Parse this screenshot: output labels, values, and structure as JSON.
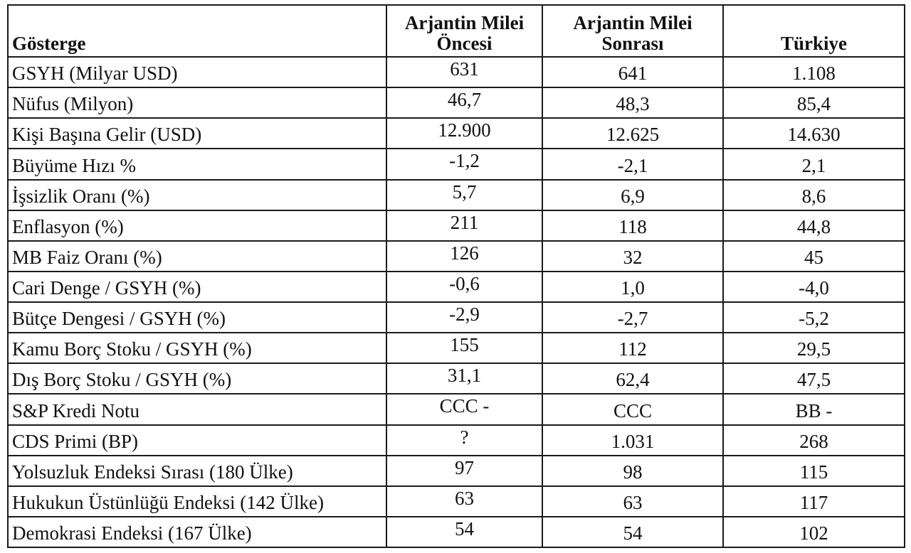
{
  "table": {
    "headers": {
      "indicator": "Gösterge",
      "before": [
        "Arjantin Milei",
        "Öncesi"
      ],
      "after": [
        "Arjantin Milei",
        "Sonrası"
      ],
      "turkey": "Türkiye"
    },
    "rows": [
      {
        "label": "GSYH (Milyar USD)",
        "before": "631",
        "after": "641",
        "turkey": "1.108"
      },
      {
        "label": "Nüfus (Milyon)",
        "before": "46,7",
        "after": "48,3",
        "turkey": "85,4"
      },
      {
        "label": "Kişi Başına Gelir (USD)",
        "before": "12.900",
        "after": "12.625",
        "turkey": "14.630"
      },
      {
        "label": "Büyüme Hızı %",
        "before": "-1,2",
        "after": "-2,1",
        "turkey": "2,1"
      },
      {
        "label": "İşsizlik Oranı (%)",
        "before": "5,7",
        "after": "6,9",
        "turkey": "8,6"
      },
      {
        "label": "Enflasyon (%)",
        "before": "211",
        "after": "118",
        "turkey": "44,8"
      },
      {
        "label": "MB Faiz Oranı (%)",
        "before": "126",
        "after": "32",
        "turkey": "45"
      },
      {
        "label": "Cari Denge / GSYH (%)",
        "before": "-0,6",
        "after": "1,0",
        "turkey": "-4,0"
      },
      {
        "label": "Bütçe Dengesi / GSYH (%)",
        "before": "-2,9",
        "after": "-2,7",
        "turkey": "-5,2"
      },
      {
        "label": "Kamu Borç Stoku / GSYH (%)",
        "before": "155",
        "after": "112",
        "turkey": "29,5"
      },
      {
        "label": "Dış Borç Stoku / GSYH (%)",
        "before": "31,1",
        "after": "62,4",
        "turkey": "47,5"
      },
      {
        "label": "S&P Kredi Notu",
        "before": "CCC -",
        "after": "CCC",
        "turkey": "BB -"
      },
      {
        "label": "CDS Primi (BP)",
        "before": "?",
        "after": "1.031",
        "turkey": "268"
      },
      {
        "label": "Yolsuzluk Endeksi Sırası (180 Ülke)",
        "before": "97",
        "after": "98",
        "turkey": "115"
      },
      {
        "label": "Hukukun Üstünlüğü Endeksi (142 Ülke)",
        "before": "63",
        "after": "63",
        "turkey": "117"
      },
      {
        "label": "Demokrasi Endeksi (167 Ülke)",
        "before": "54",
        "after": "54",
        "turkey": "102"
      }
    ]
  }
}
